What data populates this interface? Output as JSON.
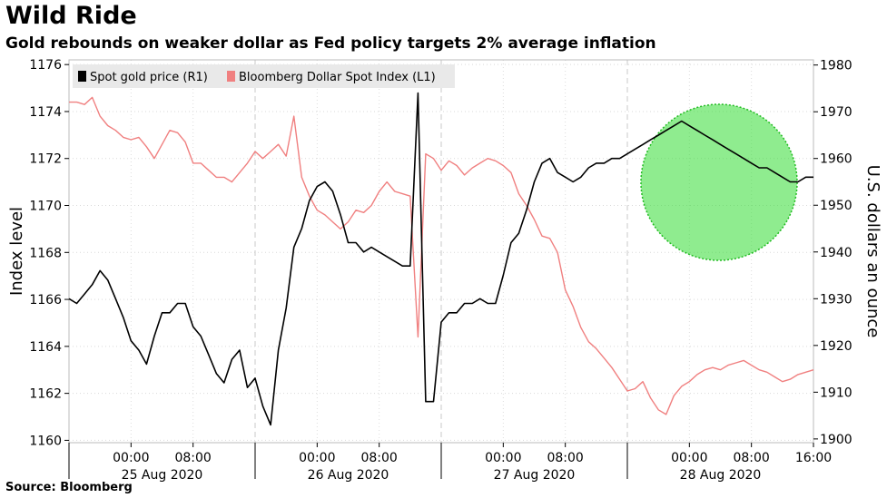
{
  "header": {
    "title": "Wild Ride",
    "subtitle": "Gold rebounds on weaker dollar as Fed policy targets 2% average inflation"
  },
  "footer": {
    "source": "Source: Bloomberg"
  },
  "chart_data": {
    "type": "line",
    "ylabel_left": "Index level",
    "ylabel_right": "U.S. dollars an ounce",
    "y_left_ticks": [
      "1176",
      "1174",
      "1172",
      "1170",
      "1168",
      "1166",
      "1164",
      "1162",
      "1160"
    ],
    "y_right_ticks": [
      "1980",
      "1970",
      "1960",
      "1950",
      "1940",
      "1930",
      "1920",
      "1910",
      "1900"
    ],
    "ylim_left": [
      1159.9,
      1176.2
    ],
    "ylim_right": [
      1899.2,
      1981.1
    ],
    "x_time_ticks": [
      "00:00",
      "08:00",
      "00:00",
      "08:00",
      "00:00",
      "08:00",
      "00:00",
      "08:00",
      "16:00"
    ],
    "x_date_labels": [
      "25 Aug 2020",
      "26 Aug 2020",
      "27 Aug 2020",
      "28 Aug 2020"
    ],
    "x_unit": "hours since 24 Aug 2020 16:00",
    "xlim": [
      0,
      96
    ],
    "legend_position": "top-left",
    "grid": true,
    "annotation": "green circle highlighting the gold rally on 28 Aug 2020",
    "series": [
      {
        "name": "Spot gold price (R1)",
        "axis": "right",
        "color": "#000000",
        "x": [
          0,
          1,
          2,
          3,
          4,
          5,
          6,
          7,
          8,
          9,
          10,
          11,
          12,
          13,
          14,
          15,
          16,
          17,
          18,
          19,
          20,
          21,
          22,
          23,
          24,
          25,
          26,
          27,
          28,
          29,
          30,
          31,
          32,
          33,
          34,
          35,
          36,
          37,
          38,
          39,
          40,
          41,
          42,
          43,
          44,
          45,
          46,
          47,
          48,
          49,
          50,
          51,
          52,
          53,
          54,
          55,
          56,
          57,
          58,
          59,
          60,
          61,
          62,
          63,
          64,
          65,
          66,
          67,
          68,
          69,
          70,
          71,
          72,
          73,
          74,
          75,
          76,
          77,
          78,
          79,
          80,
          81,
          82,
          83,
          84,
          85,
          86,
          87,
          88,
          89,
          90,
          91,
          92,
          93,
          94,
          95,
          96
        ],
        "y": [
          1930,
          1929,
          1931,
          1933,
          1936,
          1934,
          1930,
          1926,
          1921,
          1919,
          1916,
          1922,
          1927,
          1927,
          1929,
          1929,
          1924,
          1922,
          1918,
          1914,
          1912,
          1917,
          1919,
          1911,
          1913,
          1907,
          1903,
          1919,
          1928,
          1941,
          1945,
          1951,
          1954,
          1955,
          1953,
          1948,
          1942,
          1942,
          1940,
          1941,
          1940,
          1939,
          1938,
          1937,
          1937,
          1974,
          1908,
          1908,
          1925,
          1927,
          1927,
          1929,
          1929,
          1930,
          1929,
          1929,
          1935,
          1942,
          1944,
          1949,
          1955,
          1959,
          1960,
          1957,
          1956,
          1955,
          1956,
          1958,
          1959,
          1959,
          1960,
          1960,
          1961,
          1962,
          1963,
          1964,
          1965,
          1966,
          1967,
          1968,
          1967,
          1966,
          1965,
          1964,
          1963,
          1962,
          1961,
          1960,
          1959,
          1958,
          1958,
          1957,
          1956,
          1955,
          1955,
          1956,
          1956
        ]
      },
      {
        "name": "Bloomberg Dollar Spot Index (L1)",
        "axis": "left",
        "color": "#f08080",
        "x": [
          0,
          1,
          2,
          3,
          4,
          5,
          6,
          7,
          8,
          9,
          10,
          11,
          12,
          13,
          14,
          15,
          16,
          17,
          18,
          19,
          20,
          21,
          22,
          23,
          24,
          25,
          26,
          27,
          28,
          29,
          30,
          31,
          32,
          33,
          34,
          35,
          36,
          37,
          38,
          39,
          40,
          41,
          42,
          43,
          44,
          45,
          46,
          47,
          48,
          49,
          50,
          51,
          52,
          53,
          54,
          55,
          56,
          57,
          58,
          59,
          60,
          61,
          62,
          63,
          64,
          65,
          66,
          67,
          68,
          69,
          70,
          71,
          72,
          73,
          74,
          75,
          76,
          77,
          78,
          79,
          80,
          81,
          82,
          83,
          84,
          85,
          86,
          87,
          88,
          89,
          90,
          91,
          92,
          93,
          94,
          95,
          96
        ],
        "y": [
          1174.4,
          1174.4,
          1174.3,
          1174.6,
          1173.8,
          1173.4,
          1173.2,
          1172.9,
          1172.8,
          1172.9,
          1172.5,
          1172.0,
          1172.6,
          1173.2,
          1173.1,
          1172.7,
          1171.8,
          1171.8,
          1171.5,
          1171.2,
          1171.2,
          1171.0,
          1171.4,
          1171.8,
          1172.3,
          1172.0,
          1172.3,
          1172.6,
          1172.1,
          1173.8,
          1171.2,
          1170.4,
          1169.8,
          1169.6,
          1169.3,
          1169.0,
          1169.3,
          1169.8,
          1169.7,
          1170.0,
          1170.6,
          1171.0,
          1170.6,
          1170.5,
          1170.4,
          1164.4,
          1172.2,
          1172.0,
          1171.5,
          1171.9,
          1171.7,
          1171.3,
          1171.6,
          1171.8,
          1172.0,
          1171.9,
          1171.7,
          1171.4,
          1170.5,
          1170.0,
          1169.4,
          1168.7,
          1168.6,
          1168.0,
          1166.4,
          1165.7,
          1164.8,
          1164.2,
          1163.9,
          1163.5,
          1163.1,
          1162.6,
          1162.1,
          1162.2,
          1162.5,
          1161.8,
          1161.3,
          1161.1,
          1161.9,
          1162.3,
          1162.5,
          1162.8,
          1163.0,
          1163.1,
          1163.0,
          1163.2,
          1163.3,
          1163.4,
          1163.2,
          1163.0,
          1162.9,
          1162.7,
          1162.5,
          1162.6,
          1162.8,
          1162.9,
          1163.0
        ]
      }
    ]
  }
}
